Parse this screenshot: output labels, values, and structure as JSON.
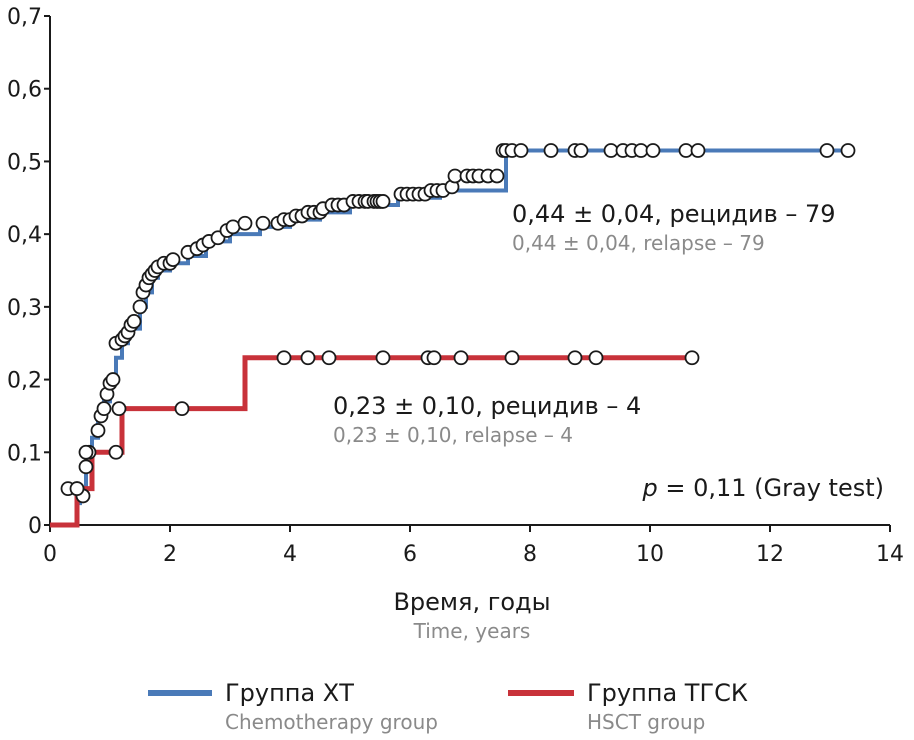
{
  "chart_data": {
    "type": "line",
    "title": "",
    "xlabel": "Время, годы",
    "xlabel_sub": "Time, years",
    "ylabel": "",
    "xlim": [
      0,
      14
    ],
    "ylim": [
      0,
      0.7
    ],
    "x_ticks": [
      0,
      2,
      4,
      6,
      8,
      10,
      12,
      14
    ],
    "x_tick_labels": [
      "0",
      "2",
      "4",
      "6",
      "8",
      "10",
      "12",
      "14"
    ],
    "y_ticks": [
      0,
      0.1,
      0.2,
      0.3,
      0.4,
      0.5,
      0.6,
      0.7
    ],
    "y_tick_labels": [
      "0",
      "0,1",
      "0,2",
      "0,3",
      "0,4",
      "0,5",
      "0,6",
      "0,7"
    ],
    "grid": false,
    "series": [
      {
        "name": "Группа ХТ",
        "name_sub": "Chemotherapy group",
        "color": "#4a7ab8",
        "step_x": [
          0,
          0.4,
          0.45,
          0.5,
          0.6,
          0.7,
          0.8,
          0.9,
          1.0,
          1.1,
          1.2,
          1.3,
          1.5,
          1.6,
          1.7,
          1.8,
          2.0,
          2.3,
          2.6,
          3.0,
          3.5,
          4.0,
          4.5,
          5.0,
          5.8,
          6.5,
          7.6,
          13.3
        ],
        "step_y": [
          0,
          0,
          0.03,
          0.05,
          0.08,
          0.12,
          0.15,
          0.17,
          0.2,
          0.23,
          0.25,
          0.27,
          0.3,
          0.32,
          0.34,
          0.35,
          0.36,
          0.37,
          0.39,
          0.4,
          0.41,
          0.42,
          0.43,
          0.44,
          0.45,
          0.46,
          0.515,
          0.515
        ],
        "censored_x": [
          0.45,
          0.55,
          0.6,
          0.65,
          0.8,
          0.85,
          0.9,
          0.95,
          1.0,
          1.05,
          1.1,
          1.2,
          1.25,
          1.3,
          1.35,
          1.4,
          1.5,
          1.55,
          1.6,
          1.65,
          1.7,
          1.75,
          1.8,
          1.9,
          2.0,
          2.05,
          2.3,
          2.45,
          2.55,
          2.65,
          2.8,
          2.95,
          3.05,
          3.25,
          3.55,
          3.8,
          3.9,
          4.0,
          4.1,
          4.2,
          4.3,
          4.4,
          4.5,
          4.55,
          4.7,
          4.8,
          4.9,
          5.05,
          5.15,
          5.25,
          5.3,
          5.4,
          5.45,
          5.5,
          5.55,
          5.85,
          5.95,
          6.05,
          6.15,
          6.25,
          6.35,
          6.45,
          6.55,
          6.7,
          6.75,
          6.95,
          7.05,
          7.15,
          7.3,
          7.45,
          7.55,
          7.6,
          7.7,
          7.85,
          8.35,
          8.75,
          8.85,
          9.35,
          9.55,
          9.7,
          9.85,
          10.05,
          10.6,
          10.8,
          12.95,
          13.3
        ],
        "censored_y": [
          0.05,
          0.04,
          0.08,
          0.1,
          0.13,
          0.15,
          0.16,
          0.18,
          0.195,
          0.2,
          0.25,
          0.255,
          0.26,
          0.265,
          0.275,
          0.28,
          0.3,
          0.32,
          0.33,
          0.34,
          0.345,
          0.35,
          0.355,
          0.36,
          0.36,
          0.365,
          0.375,
          0.38,
          0.385,
          0.39,
          0.395,
          0.405,
          0.41,
          0.415,
          0.415,
          0.415,
          0.42,
          0.42,
          0.425,
          0.425,
          0.43,
          0.43,
          0.43,
          0.435,
          0.44,
          0.44,
          0.44,
          0.445,
          0.445,
          0.445,
          0.445,
          0.445,
          0.445,
          0.445,
          0.445,
          0.455,
          0.455,
          0.455,
          0.455,
          0.455,
          0.46,
          0.46,
          0.46,
          0.465,
          0.48,
          0.48,
          0.48,
          0.48,
          0.48,
          0.48,
          0.515,
          0.515,
          0.515,
          0.515,
          0.515,
          0.515,
          0.515,
          0.515,
          0.515,
          0.515,
          0.515,
          0.515,
          0.515,
          0.515,
          0.515,
          0.515
        ]
      },
      {
        "name": "Группа ТГСК",
        "name_sub": "HSCT group",
        "color": "#c8323a",
        "step_x": [
          0,
          0.3,
          0.45,
          0.5,
          0.7,
          1.15,
          1.2,
          3.2,
          3.25,
          10.7
        ],
        "step_y": [
          0,
          0,
          0.05,
          0.05,
          0.1,
          0.1,
          0.16,
          0.16,
          0.23,
          0.23
        ],
        "censored_x": [
          0.3,
          0.45,
          0.6,
          1.1,
          1.15,
          2.2,
          3.9,
          4.3,
          4.65,
          5.55,
          6.3,
          6.4,
          6.85,
          7.7,
          8.75,
          9.1,
          10.7
        ],
        "censored_y": [
          0.05,
          0.05,
          0.1,
          0.1,
          0.16,
          0.16,
          0.23,
          0.23,
          0.23,
          0.23,
          0.23,
          0.23,
          0.23,
          0.23,
          0.23,
          0.23,
          0.23
        ]
      }
    ],
    "annotations": {
      "chemo_main": "0,44 ± 0,04, рецидив – 79",
      "chemo_sub": "0,44 ± 0,04, relapse – 79",
      "hsct_main": "0,23 ± 0,10, рецидив – 4",
      "hsct_sub": "0,23 ± 0,10, relapse – 4",
      "p_label": "p",
      "p_text": " = 0,11 (Gray test)"
    }
  }
}
